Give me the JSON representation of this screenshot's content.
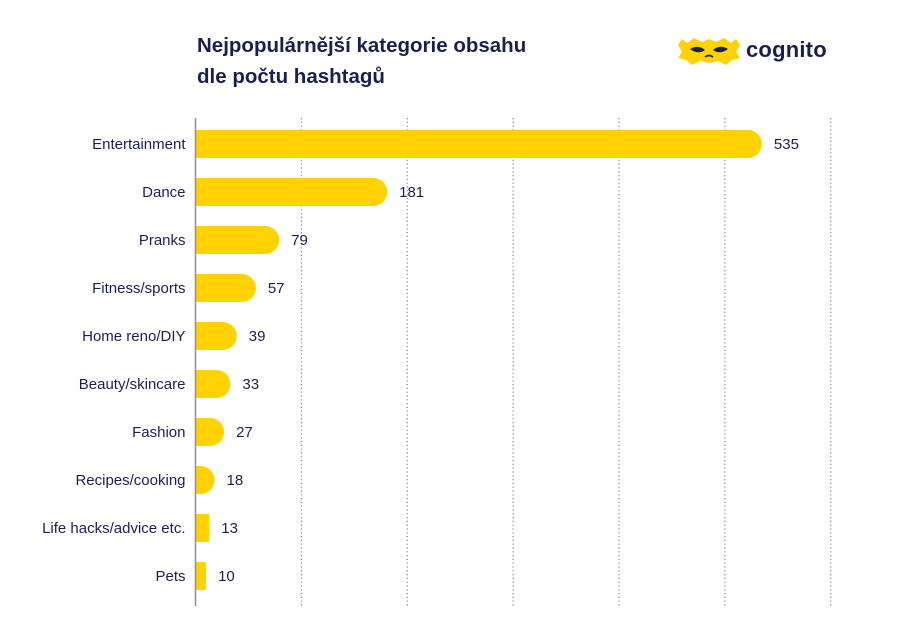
{
  "title_line1": "Nejpopulárnější kategorie obsahu",
  "title_line2": "dle počtu hashtagů",
  "brand": {
    "name": "cognito",
    "icon": "mask-icon",
    "color": "#ffd200",
    "ink": "#1b1f4e"
  },
  "colors": {
    "bar": "#ffd200",
    "text": "#1b1f4e",
    "axis": "#8a8da8",
    "grid": "#7c7f99"
  },
  "chart_data": {
    "type": "bar",
    "orientation": "horizontal",
    "categories": [
      "Entertainment",
      "Dance",
      "Pranks",
      "Fitness/sports",
      "Home reno/DIY",
      "Beauty/skincare",
      "Fashion",
      "Recipes/cooking",
      "Life hacks/advice etc.",
      "Pets"
    ],
    "values": [
      535,
      181,
      79,
      57,
      39,
      33,
      27,
      18,
      13,
      10
    ],
    "xlim": [
      0,
      600
    ],
    "grid_step": 100,
    "grid": "vertical dotted",
    "data_labels": true
  }
}
